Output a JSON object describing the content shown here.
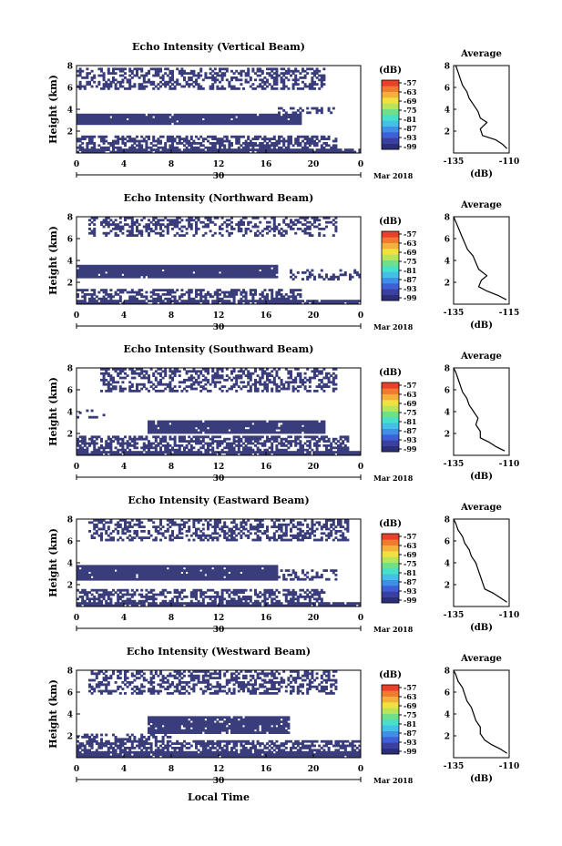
{
  "global": {
    "xlabel": "Local Time",
    "date_label": "Mar 2018",
    "colorbar_unit": "(dB)",
    "profile_title": "Average",
    "profile_xlabel": "(dB)",
    "colorbar_ticks": [
      "-57",
      "-63",
      "-69",
      "-75",
      "-81",
      "-87",
      "-93",
      "-99"
    ],
    "colorscale": [
      "#2b2f7a",
      "#3a3fa0",
      "#3f5fd8",
      "#3f8fe8",
      "#43c0e8",
      "#47e0c8",
      "#6fe08a",
      "#b8e45a",
      "#f0e040",
      "#f4b03a",
      "#f27a2e",
      "#e8402a"
    ],
    "fill_color": "#3a3d7c"
  },
  "chart_data": [
    {
      "type": "heatmap",
      "title": "Echo Intensity (Vertical Beam)",
      "ylabel": "Height (km)",
      "x_ticks": [
        "0",
        "4",
        "8",
        "12",
        "16",
        "20",
        "0"
      ],
      "x_day_label": "30",
      "y_ticks": [
        "2",
        "4",
        "6",
        "8"
      ],
      "xlim": [
        0,
        24
      ],
      "ylim": [
        0,
        8
      ],
      "profile": {
        "xlim": [
          -135,
          -110
        ],
        "x_ticks": [
          "-135",
          "-110"
        ],
        "y_ticks": [
          "2",
          "4",
          "6",
          "8"
        ],
        "points": [
          [
            -111,
            0.4
          ],
          [
            -113,
            0.8
          ],
          [
            -116,
            1.2
          ],
          [
            -122,
            1.6
          ],
          [
            -123,
            2.2
          ],
          [
            -120,
            2.8
          ],
          [
            -123,
            3.2
          ],
          [
            -124,
            3.8
          ],
          [
            -126,
            4.4
          ],
          [
            -128,
            5.0
          ],
          [
            -129,
            5.6
          ],
          [
            -131,
            6.2
          ],
          [
            -132,
            6.8
          ],
          [
            -133,
            7.4
          ],
          [
            -134,
            8.0
          ]
        ]
      }
    },
    {
      "type": "heatmap",
      "title": "Echo Intensity (Northward Beam)",
      "ylabel": "Height (km)",
      "x_ticks": [
        "0",
        "4",
        "8",
        "12",
        "16",
        "20",
        "0"
      ],
      "x_day_label": "30",
      "y_ticks": [
        "2",
        "4",
        "6",
        "8"
      ],
      "xlim": [
        0,
        24
      ],
      "ylim": [
        0,
        8
      ],
      "profile": {
        "xlim": [
          -135,
          -115
        ],
        "x_ticks": [
          "-135",
          "-115"
        ],
        "y_ticks": [
          "2",
          "4",
          "6",
          "8"
        ],
        "points": [
          [
            -116,
            0.4
          ],
          [
            -119,
            0.8
          ],
          [
            -123,
            1.2
          ],
          [
            -126,
            1.6
          ],
          [
            -125,
            2.2
          ],
          [
            -123,
            2.6
          ],
          [
            -126,
            3.2
          ],
          [
            -127,
            3.8
          ],
          [
            -128,
            4.4
          ],
          [
            -130,
            5.0
          ],
          [
            -131,
            5.6
          ],
          [
            -132,
            6.2
          ],
          [
            -133,
            6.8
          ],
          [
            -134,
            7.4
          ],
          [
            -135,
            8.0
          ]
        ]
      }
    },
    {
      "type": "heatmap",
      "title": "Echo Intensity (Southward Beam)",
      "ylabel": "Height (km)",
      "x_ticks": [
        "0",
        "4",
        "8",
        "12",
        "16",
        "20",
        "0"
      ],
      "x_day_label": "30",
      "y_ticks": [
        "2",
        "4",
        "6",
        "8"
      ],
      "xlim": [
        0,
        24
      ],
      "ylim": [
        0,
        8
      ],
      "profile": {
        "xlim": [
          -135,
          -110
        ],
        "x_ticks": [
          "-135",
          "-110"
        ],
        "y_ticks": [
          "2",
          "4",
          "6",
          "8"
        ],
        "points": [
          [
            -112,
            0.4
          ],
          [
            -116,
            0.8
          ],
          [
            -119,
            1.2
          ],
          [
            -123,
            1.6
          ],
          [
            -123,
            2.2
          ],
          [
            -125,
            2.8
          ],
          [
            -124,
            3.4
          ],
          [
            -126,
            4.0
          ],
          [
            -128,
            4.6
          ],
          [
            -129,
            5.2
          ],
          [
            -131,
            5.8
          ],
          [
            -132,
            6.4
          ],
          [
            -133,
            7.0
          ],
          [
            -134,
            7.6
          ],
          [
            -135,
            8.0
          ]
        ]
      }
    },
    {
      "type": "heatmap",
      "title": "Echo Intensity (Eastward Beam)",
      "ylabel": "Height (km)",
      "x_ticks": [
        "0",
        "4",
        "8",
        "12",
        "16",
        "20",
        "0"
      ],
      "x_day_label": "30",
      "y_ticks": [
        "2",
        "4",
        "6",
        "8"
      ],
      "xlim": [
        0,
        24
      ],
      "ylim": [
        0,
        8
      ],
      "profile": {
        "xlim": [
          -135,
          -110
        ],
        "x_ticks": [
          "-135",
          "-110"
        ],
        "y_ticks": [
          "2",
          "4",
          "6",
          "8"
        ],
        "points": [
          [
            -111,
            0.4
          ],
          [
            -114,
            0.8
          ],
          [
            -117,
            1.2
          ],
          [
            -121,
            1.6
          ],
          [
            -122,
            2.2
          ],
          [
            -123,
            2.8
          ],
          [
            -124,
            3.4
          ],
          [
            -125,
            4.0
          ],
          [
            -127,
            4.6
          ],
          [
            -128,
            5.2
          ],
          [
            -130,
            5.8
          ],
          [
            -131,
            6.4
          ],
          [
            -133,
            7.0
          ],
          [
            -134,
            7.6
          ],
          [
            -135,
            8.0
          ]
        ]
      }
    },
    {
      "type": "heatmap",
      "title": "Echo Intensity (Westward Beam)",
      "ylabel": "Height (km)",
      "x_ticks": [
        "0",
        "4",
        "8",
        "12",
        "16",
        "20",
        "0"
      ],
      "x_day_label": "30",
      "y_ticks": [
        "2",
        "4",
        "6",
        "8"
      ],
      "xlim": [
        0,
        24
      ],
      "ylim": [
        0,
        8
      ],
      "profile": {
        "xlim": [
          -135,
          -110
        ],
        "x_ticks": [
          "-135",
          "-110"
        ],
        "y_ticks": [
          "2",
          "4",
          "6",
          "8"
        ],
        "points": [
          [
            -111,
            0.4
          ],
          [
            -114,
            0.8
          ],
          [
            -118,
            1.2
          ],
          [
            -121,
            1.6
          ],
          [
            -123,
            2.2
          ],
          [
            -123,
            2.8
          ],
          [
            -125,
            3.4
          ],
          [
            -126,
            4.0
          ],
          [
            -127,
            4.6
          ],
          [
            -129,
            5.2
          ],
          [
            -130,
            5.8
          ],
          [
            -131,
            6.4
          ],
          [
            -133,
            7.0
          ],
          [
            -134,
            7.6
          ],
          [
            -135,
            8.0
          ]
        ]
      }
    }
  ]
}
